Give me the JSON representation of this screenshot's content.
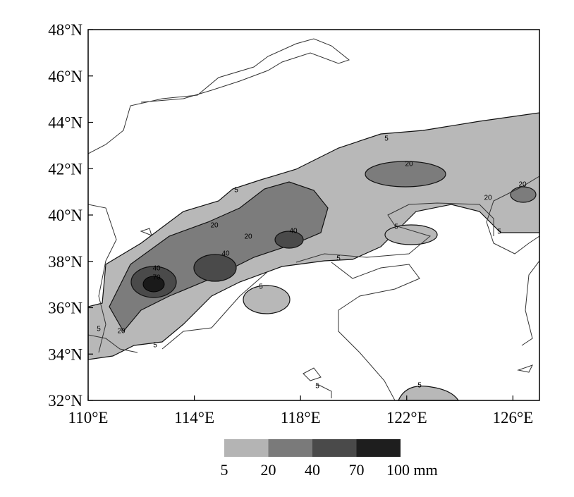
{
  "map": {
    "xlim": [
      110,
      127
    ],
    "ylim": [
      32,
      48
    ],
    "xticks": [
      {
        "value": 110,
        "label": "110°E"
      },
      {
        "value": 114,
        "label": "114°E"
      },
      {
        "value": 118,
        "label": "118°E"
      },
      {
        "value": 122,
        "label": "122°E"
      },
      {
        "value": 126,
        "label": "126°E"
      }
    ],
    "yticks": [
      {
        "value": 32,
        "label": "32°N"
      },
      {
        "value": 34,
        "label": "34°N"
      },
      {
        "value": 36,
        "label": "36°N"
      },
      {
        "value": 38,
        "label": "38°N"
      },
      {
        "value": 40,
        "label": "40°N"
      },
      {
        "value": 42,
        "label": "42°N"
      },
      {
        "value": 44,
        "label": "44°N"
      },
      {
        "value": 46,
        "label": "46°N"
      },
      {
        "value": 48,
        "label": "48°N"
      }
    ],
    "contour_labels": [
      "5",
      "20",
      "20",
      "20",
      "5",
      "20",
      "20",
      "40",
      "40",
      "40",
      "70",
      "5",
      "5",
      "5",
      "5",
      "5",
      "20",
      "5",
      "5",
      "5"
    ],
    "colorbar": {
      "levels": [
        5,
        20,
        40,
        70,
        {
          "value": 100,
          "label": "100 mm"
        }
      ],
      "colors": [
        "#b4b4b4",
        "#7a7a7a",
        "#4a4a4a",
        "#1e1e1e"
      ]
    }
  }
}
